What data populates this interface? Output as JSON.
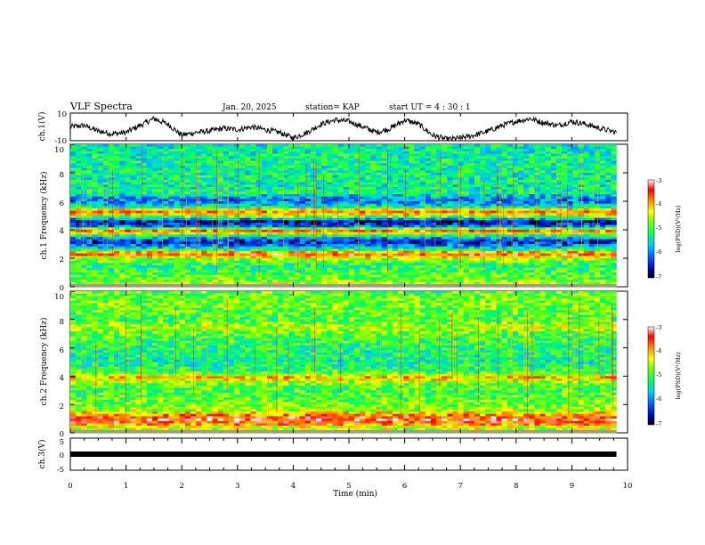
{
  "header": {
    "title": "VLF Spectra",
    "date": "Jan. 20, 2025",
    "station": "station= KAP",
    "start": "start  UT =   4 : 30 : 1"
  },
  "chart_data": [
    {
      "type": "line",
      "panel": "ch1-waveform",
      "ylabel": "ch.1(V)",
      "ylim": [
        -10,
        10
      ],
      "yticks": [
        "10",
        "-10"
      ],
      "xlim": [
        0,
        10
      ],
      "x": [
        0,
        0.25,
        0.5,
        0.75,
        1.0,
        1.25,
        1.5,
        1.75,
        2.0,
        2.25,
        2.5,
        2.75,
        3.0,
        3.25,
        3.5,
        3.75,
        4.0,
        4.25,
        4.5,
        4.75,
        5.0,
        5.25,
        5.5,
        5.75,
        6.0,
        6.25,
        6.5,
        6.75,
        7.0,
        7.25,
        7.5,
        7.75,
        8.0,
        8.25,
        8.5,
        8.75,
        9.0,
        9.25,
        9.5,
        9.8
      ],
      "y": [
        0,
        1,
        -3,
        -5,
        -4,
        1,
        6,
        2,
        -6,
        -4,
        -3,
        -1,
        -2,
        0,
        -2,
        -4,
        -8,
        -4,
        2,
        5,
        4,
        0,
        -4,
        -1,
        5,
        2,
        -6,
        -9,
        -8,
        -6,
        -3,
        1,
        4,
        6,
        3,
        1,
        4,
        2,
        -1,
        -4
      ]
    },
    {
      "type": "heatmap",
      "panel": "ch1-spectrogram",
      "ylabel": "ch.1 Frequency (kHz)",
      "ylim": [
        0,
        10
      ],
      "yticks": [
        "0",
        "2",
        "4",
        "6",
        "8",
        "10"
      ],
      "xlim": [
        0,
        10
      ],
      "colorbar": {
        "label": "log(PSD)(V²/Hz)",
        "ticks": [
          "-3",
          "-4",
          "-5",
          "-6",
          "-7"
        ],
        "range": [
          -7,
          -3
        ]
      },
      "bands_khz_logpsd": [
        [
          0.0,
          -4.2
        ],
        [
          0.5,
          -4.8
        ],
        [
          1.0,
          -5.0
        ],
        [
          1.5,
          -5.2
        ],
        [
          2.0,
          -4.6
        ],
        [
          2.3,
          -3.4
        ],
        [
          2.6,
          -5.2
        ],
        [
          3.0,
          -6.3
        ],
        [
          3.2,
          -6.5
        ],
        [
          3.6,
          -5.2
        ],
        [
          3.9,
          -3.6
        ],
        [
          4.3,
          -6.4
        ],
        [
          4.6,
          -6.6
        ],
        [
          5.0,
          -4.4
        ],
        [
          5.3,
          -3.6
        ],
        [
          5.6,
          -5.4
        ],
        [
          6.0,
          -6.1
        ],
        [
          6.3,
          -5.8
        ],
        [
          6.6,
          -5.2
        ],
        [
          7.0,
          -5.4
        ],
        [
          8.0,
          -5.3
        ],
        [
          9.0,
          -5.3
        ],
        [
          10.0,
          -5.4
        ]
      ]
    },
    {
      "type": "heatmap",
      "panel": "ch2-spectrogram",
      "ylabel": "ch.2 Frequency (kHz)",
      "ylim": [
        0,
        10
      ],
      "yticks": [
        "0",
        "2",
        "4",
        "6",
        "8",
        "10"
      ],
      "xlim": [
        0,
        10
      ],
      "colorbar": {
        "label": "log(PSD)(V²/Hz)",
        "ticks": [
          "-3",
          "-4",
          "-5",
          "-6",
          "-7"
        ],
        "range": [
          -7,
          -3
        ]
      },
      "bands_khz_logpsd": [
        [
          0.0,
          -4.6
        ],
        [
          0.4,
          -4.4
        ],
        [
          0.8,
          -3.5
        ],
        [
          1.0,
          -3.4
        ],
        [
          1.3,
          -4.0
        ],
        [
          1.6,
          -4.6
        ],
        [
          2.0,
          -4.8
        ],
        [
          2.5,
          -4.9
        ],
        [
          3.0,
          -5.0
        ],
        [
          3.5,
          -4.8
        ],
        [
          3.9,
          -4.0
        ],
        [
          4.3,
          -5.1
        ],
        [
          5.0,
          -5.3
        ],
        [
          6.0,
          -5.2
        ],
        [
          7.0,
          -4.9
        ],
        [
          7.5,
          -4.5
        ],
        [
          8.0,
          -5.0
        ],
        [
          9.0,
          -4.8
        ],
        [
          10.0,
          -4.9
        ]
      ]
    },
    {
      "type": "line",
      "panel": "ch3-waveform",
      "ylabel": "ch.3(V)",
      "ylim": [
        -5,
        5
      ],
      "yticks": [
        "5",
        "0",
        "-5"
      ],
      "xlim": [
        0,
        10
      ],
      "xlabel": "Time  (min)",
      "xticks": [
        "0",
        "1",
        "2",
        "3",
        "4",
        "5",
        "6",
        "7",
        "8",
        "9",
        "10"
      ],
      "x": [
        0,
        9.8
      ],
      "y": [
        0,
        0
      ]
    }
  ]
}
